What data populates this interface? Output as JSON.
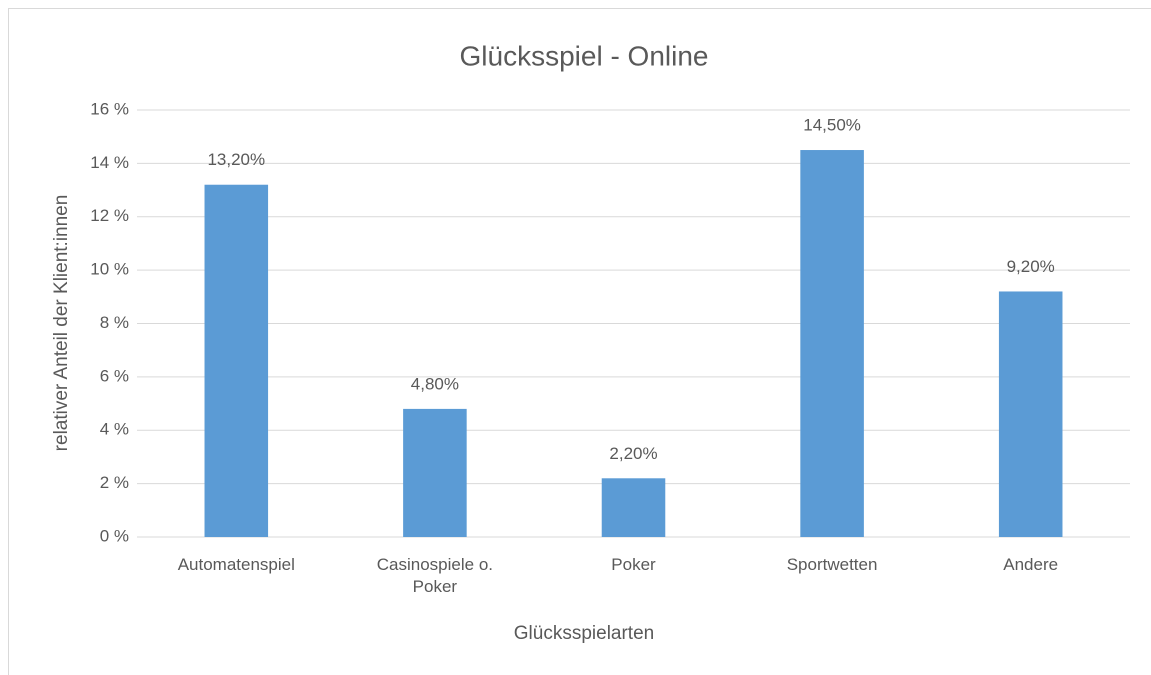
{
  "chart_data": {
    "type": "bar",
    "title": "Glücksspiel - Online",
    "x_label": "Glücksspielarten",
    "y_label": "relativer Anteil der Klient:innen",
    "categories": [
      "Automatenspiel",
      "Casinospiele o. Poker",
      "Poker",
      "Sportwetten",
      "Andere"
    ],
    "values": [
      13.2,
      4.8,
      2.2,
      14.5,
      9.2
    ],
    "value_labels": [
      "13,20%",
      "4,80%",
      "2,20%",
      "14,50%",
      "9,20%"
    ],
    "color": "#5b9bd5",
    "ylim": [
      0,
      16
    ],
    "yticks": [
      {
        "value": 0,
        "label": "0 %"
      },
      {
        "value": 2,
        "label": "2 %"
      },
      {
        "value": 4,
        "label": "4 %"
      },
      {
        "value": 6,
        "label": "6 %"
      },
      {
        "value": 8,
        "label": "8 %"
      },
      {
        "value": 10,
        "label": "10 %"
      },
      {
        "value": 12,
        "label": "12 %"
      },
      {
        "value": 14,
        "label": "14 %"
      },
      {
        "value": 16,
        "label": "16 %"
      }
    ],
    "grid": true
  }
}
